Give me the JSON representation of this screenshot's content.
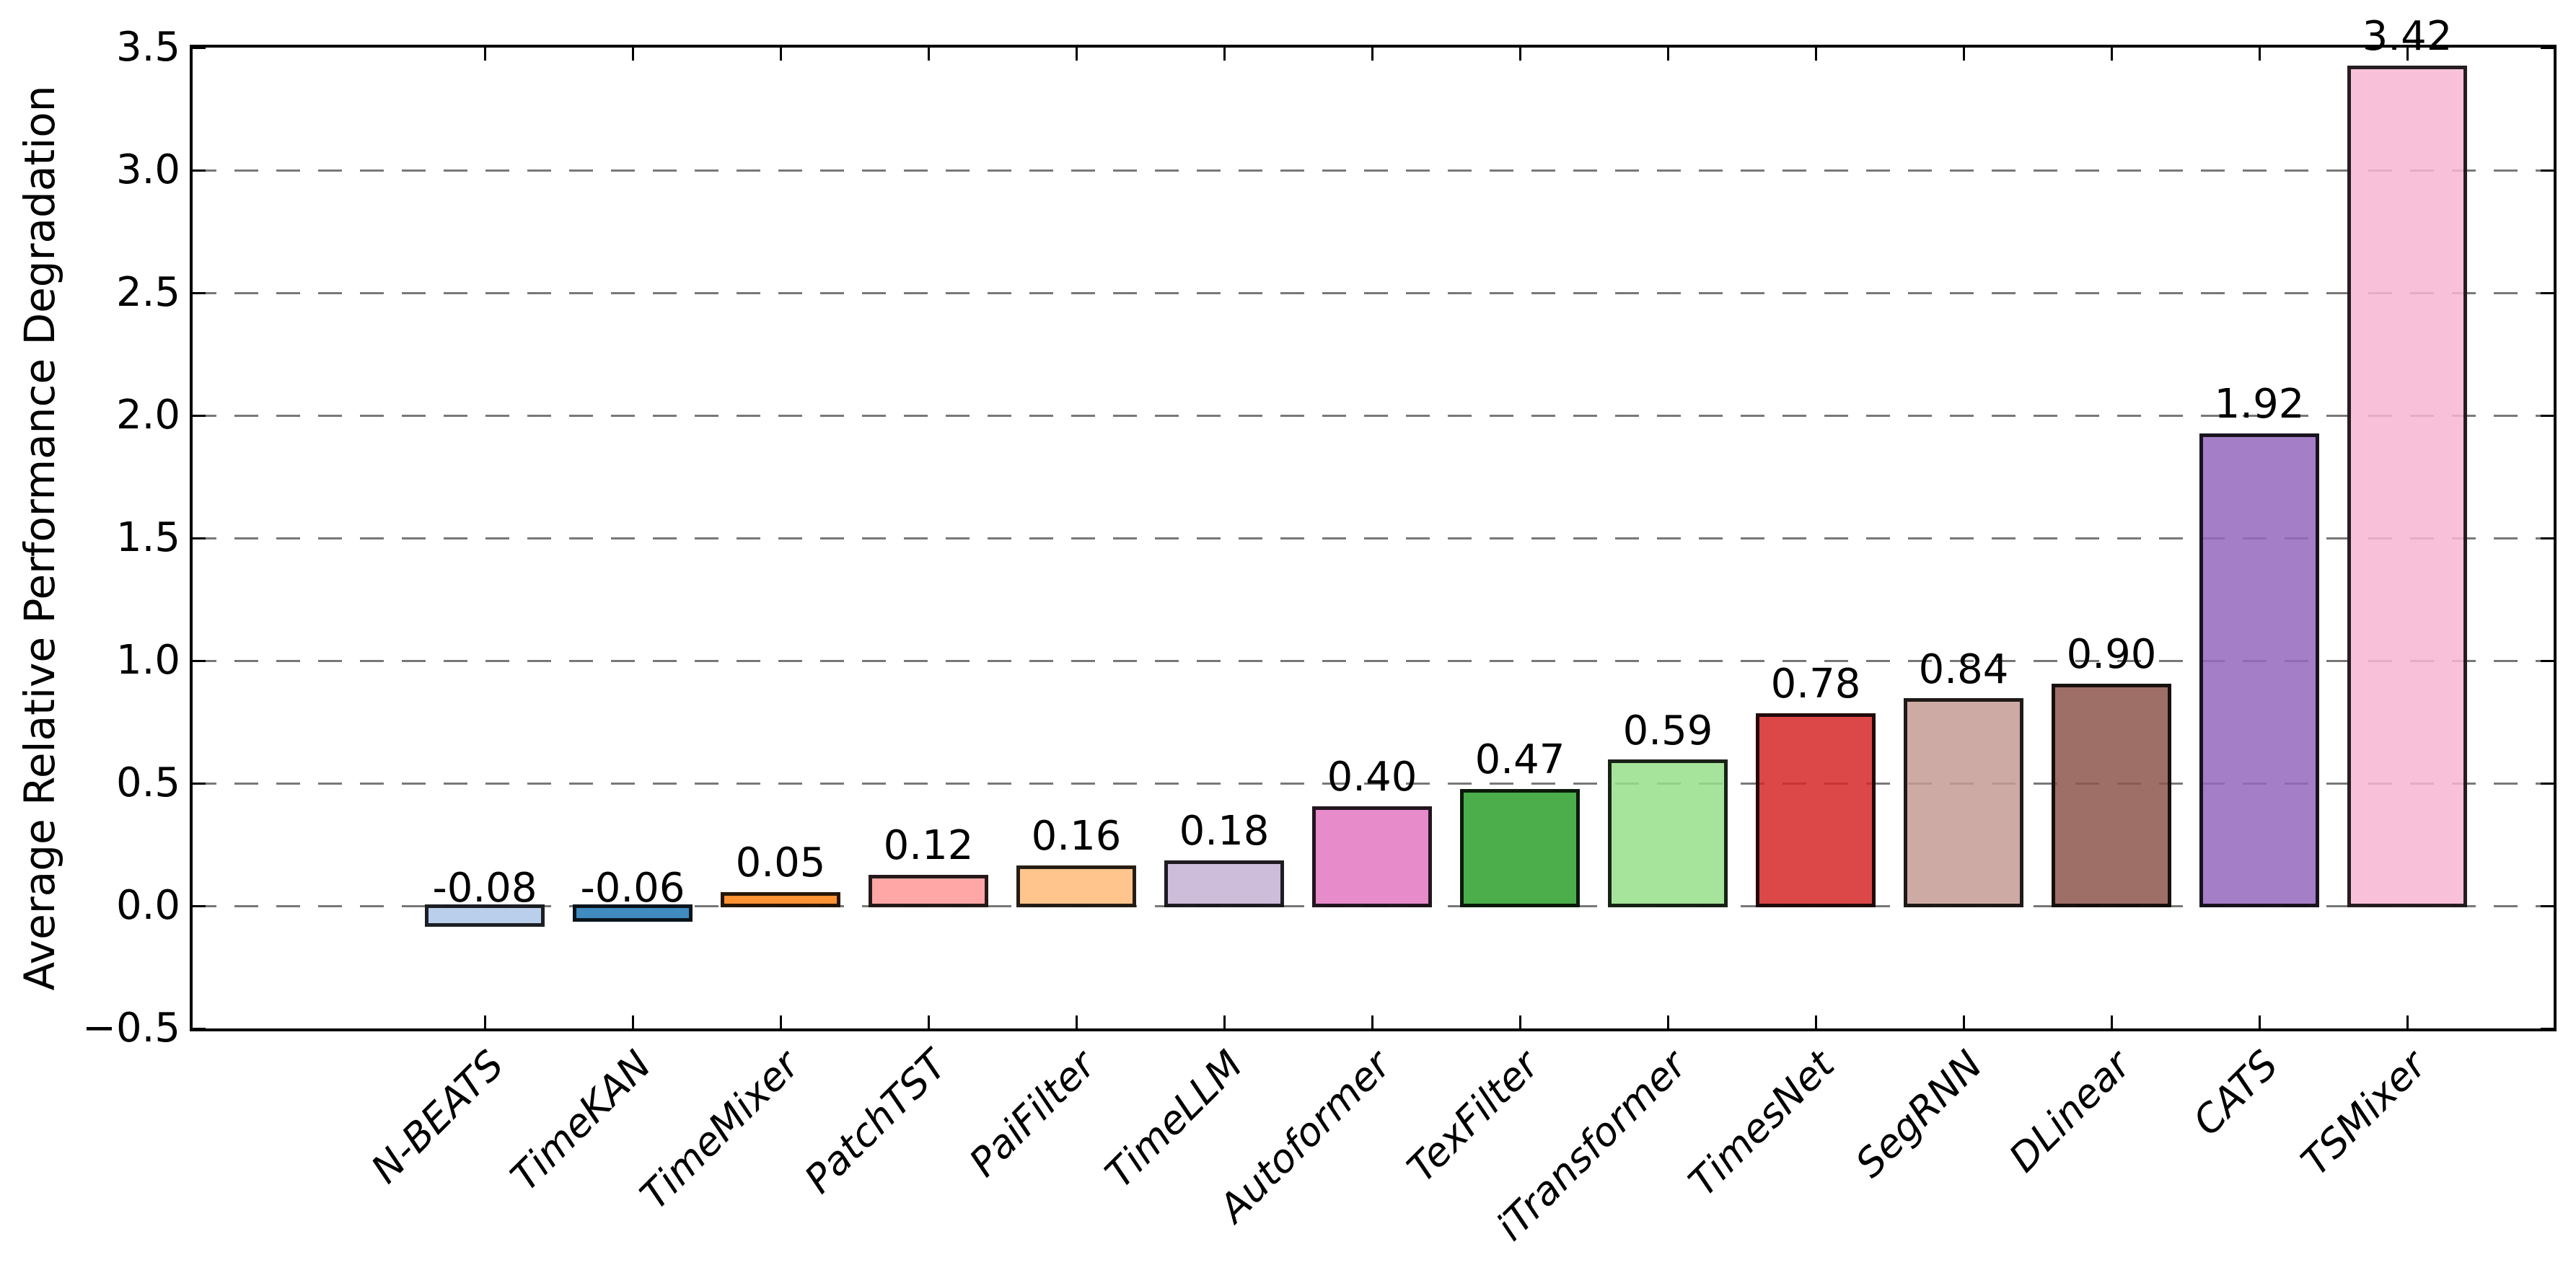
{
  "chart_data": {
    "type": "bar",
    "title": "",
    "xlabel": "",
    "ylabel": "Average Relative Performance Degradation",
    "ylim": [
      -0.5,
      3.5
    ],
    "ytick_values": [
      -0.5,
      0.0,
      0.5,
      1.0,
      1.5,
      2.0,
      2.5,
      3.0,
      3.5
    ],
    "ytick_labels": [
      "−0.5",
      "0.0",
      "0.5",
      "1.0",
      "1.5",
      "2.0",
      "2.5",
      "3.0",
      "3.5"
    ],
    "grid": "horizontal-dashed",
    "grid_color": "#787878",
    "legend_position": "none",
    "categories": [
      "N-BEATS",
      "TimeKAN",
      "TimeMixer",
      "PatchTST",
      "PaiFilter",
      "TimeLLM",
      "Autoformer",
      "TexFilter",
      "iTransformer",
      "TimesNet",
      "SegRNN",
      "DLinear",
      "CATS",
      "TSMixer"
    ],
    "values": [
      -0.08,
      -0.06,
      0.05,
      0.12,
      0.16,
      0.18,
      0.4,
      0.47,
      0.59,
      0.78,
      0.84,
      0.9,
      1.92,
      3.42
    ],
    "value_labels": [
      "-0.08",
      "-0.06",
      "0.05",
      "0.12",
      "0.16",
      "0.18",
      "0.40",
      "0.47",
      "0.59",
      "0.78",
      "0.84",
      "0.90",
      "1.92",
      "3.42"
    ],
    "bar_fill_rgb": [
      [
        174,
        199,
        232
      ],
      [
        31,
        119,
        180
      ],
      [
        255,
        127,
        14
      ],
      [
        255,
        152,
        150
      ],
      [
        255,
        187,
        120
      ],
      [
        197,
        176,
        213
      ],
      [
        227,
        119,
        194
      ],
      [
        44,
        160,
        44
      ],
      [
        152,
        223,
        138
      ],
      [
        214,
        39,
        40
      ],
      [
        196,
        156,
        148
      ],
      [
        140,
        86,
        75
      ],
      [
        148,
        103,
        189
      ],
      [
        247,
        182,
        210
      ]
    ],
    "bar_alpha": 0.85,
    "bar_edge_color": "rgba(0,0,0,0.85)",
    "spine_color": "#000000",
    "text_color": "#000000"
  }
}
